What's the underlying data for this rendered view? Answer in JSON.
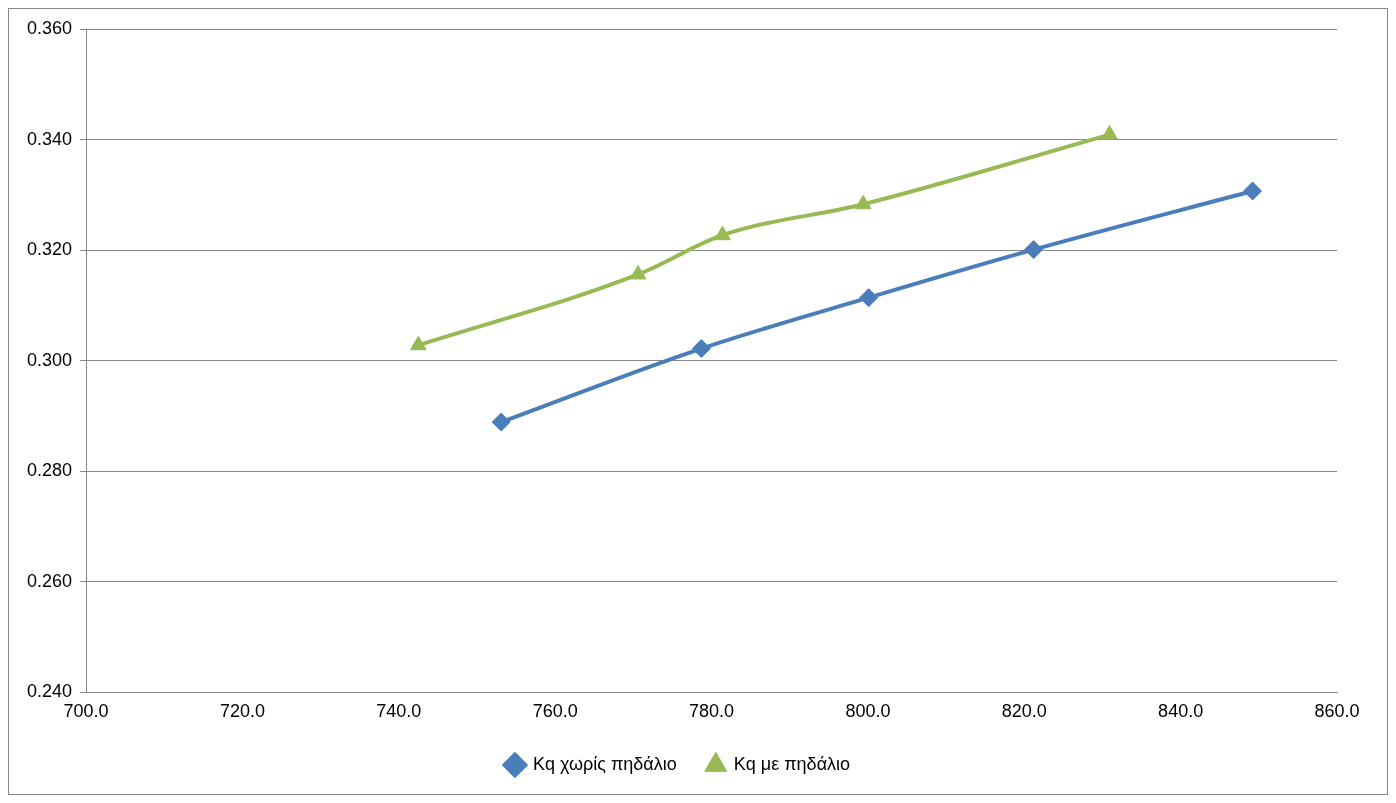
{
  "chart_data": {
    "type": "line",
    "xlim": [
      700,
      860
    ],
    "ylim": [
      0.24,
      0.36
    ],
    "xticks": [
      {
        "value": 700,
        "label": "700.0"
      },
      {
        "value": 720,
        "label": "720.0"
      },
      {
        "value": 740,
        "label": "740.0"
      },
      {
        "value": 760,
        "label": "760.0"
      },
      {
        "value": 780,
        "label": "780.0"
      },
      {
        "value": 800,
        "label": "800.0"
      },
      {
        "value": 820,
        "label": "820.0"
      },
      {
        "value": 840,
        "label": "840.0"
      },
      {
        "value": 860,
        "label": "860.0"
      }
    ],
    "yticks": [
      {
        "value": 0.24,
        "label": "0.240"
      },
      {
        "value": 0.26,
        "label": "0.260"
      },
      {
        "value": 0.28,
        "label": "0.280"
      },
      {
        "value": 0.3,
        "label": "0.300"
      },
      {
        "value": 0.32,
        "label": "0.320"
      },
      {
        "value": 0.34,
        "label": "0.340"
      },
      {
        "value": 0.36,
        "label": "0.360"
      }
    ],
    "grid": "y",
    "legend": "bottom",
    "series": [
      {
        "name": "Kq χωρίς πηδάλιο",
        "color": "#4a7ebb",
        "marker": "diamond",
        "x": [
          753.1,
          778.7,
          800.1,
          821.2,
          849.2
        ],
        "values": [
          0.2889,
          0.3022,
          0.3114,
          0.3201,
          0.3307
        ]
      },
      {
        "name": "Kq με πηδάλιο",
        "color": "#98b954",
        "marker": "triangle",
        "x": [
          742.5,
          770.6,
          781.4,
          799.4,
          830.9
        ],
        "values": [
          0.3028,
          0.3156,
          0.3227,
          0.3283,
          0.3409
        ]
      }
    ]
  }
}
